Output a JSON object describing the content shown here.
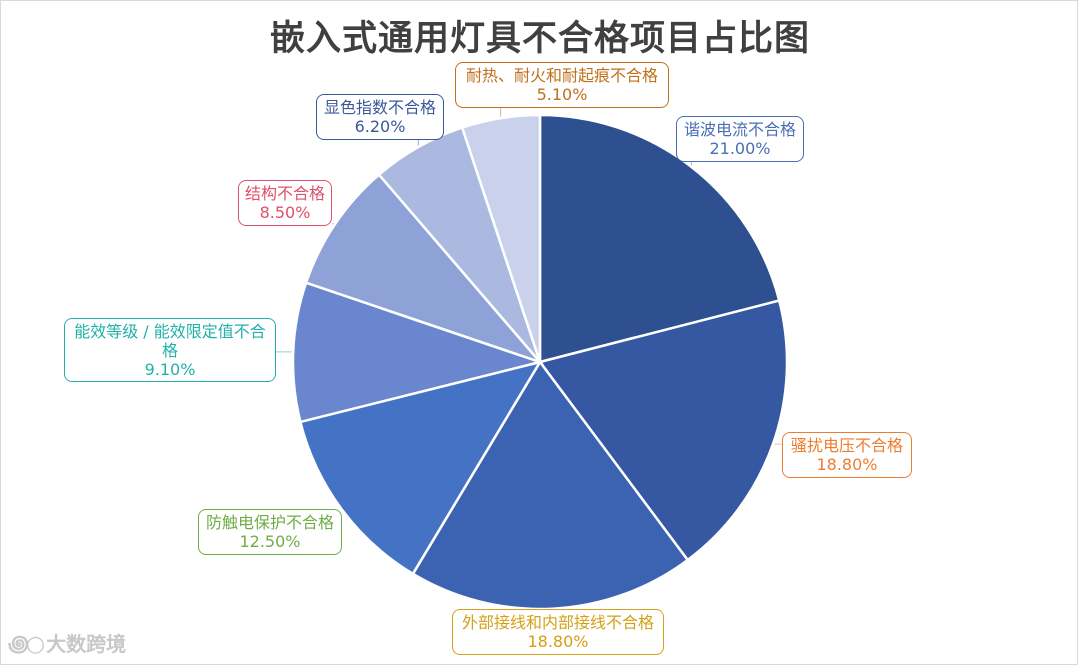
{
  "chart_data": {
    "type": "pie",
    "title": "嵌入式通用灯具不合格项目占比图",
    "series": [
      {
        "label": "谐波电流不合格",
        "value": 21.0,
        "display": "21.00%",
        "color": "#2f5090",
        "label_color": "#4a6fb5"
      },
      {
        "label": "骚扰电压不合格",
        "value": 18.8,
        "display": "18.80%",
        "color": "#3658a3",
        "label_color": "#ed7d31"
      },
      {
        "label": "外部接线和内部接线不合格",
        "value": 18.8,
        "display": "18.80%",
        "color": "#3c62b2",
        "label_color": "#d4a017"
      },
      {
        "label": "防触电保护不合格",
        "value": 12.5,
        "display": "12.50%",
        "color": "#4472c4",
        "label_color": "#70ad47"
      },
      {
        "label": "能效等级 / 能效限定值不合格",
        "value": 9.1,
        "display": "9.10%",
        "color": "#6a86cf",
        "label_color": "#20b2aa"
      },
      {
        "label": "结构不合格",
        "value": 8.5,
        "display": "8.50%",
        "color": "#8fa2d8",
        "label_color": "#e0506a"
      },
      {
        "label": "显色指数不合格",
        "value": 6.2,
        "display": "6.20%",
        "color": "#abb9e1",
        "label_color": "#3b5998"
      },
      {
        "label": "耐热、耐火和耐起痕不合格",
        "value": 5.1,
        "display": "5.10%",
        "color": "#c9d1ec",
        "label_color": "#c0701a"
      }
    ]
  },
  "watermark": "大数跨境"
}
